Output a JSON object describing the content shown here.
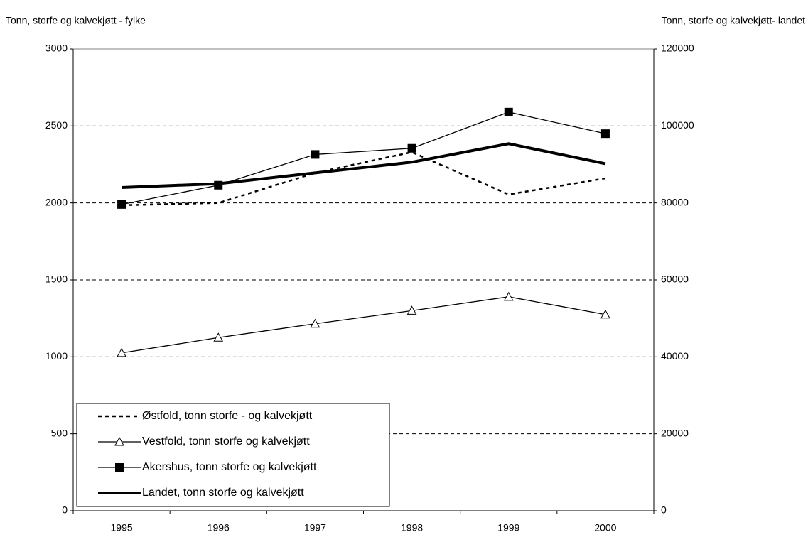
{
  "chart_data": {
    "type": "line",
    "y_label": "Tonn, storfe og kalvekjøtt - fylke",
    "y2_label": "Tonn, storfe og kalvekjøtt- landet",
    "categories": [
      "1995",
      "1996",
      "1997",
      "1998",
      "1999",
      "2000"
    ],
    "series": [
      {
        "name": "Østfold, tonn storfe - og kalvekjøtt",
        "color": "#000000",
        "dash": "dotted",
        "marker": "none",
        "values": [
          1985,
          2000,
          2195,
          2330,
          2055,
          2160
        ]
      },
      {
        "name": "Vestfold, tonn storfe og kalvekjøtt",
        "color": "#000000",
        "dash": "solid",
        "marker": "triangle",
        "values": [
          1025,
          1125,
          1215,
          1300,
          1390,
          1275
        ]
      },
      {
        "name": "Akershus, tonn storfe og kalvekjøtt",
        "color": "#000000",
        "dash": "solid",
        "marker": "square",
        "values": [
          1990,
          2115,
          2315,
          2355,
          2590,
          2450
        ]
      },
      {
        "name": "Landet, tonn storfe og kalvekjøtt",
        "color": "#000000",
        "dash": "thick",
        "marker": "none",
        "axis": "y2",
        "values": [
          84000,
          85000,
          87800,
          90600,
          95400,
          90200
        ]
      }
    ],
    "ylim": [
      0,
      3000
    ],
    "yticks": [
      0,
      500,
      1000,
      1500,
      2000,
      2500,
      3000
    ],
    "y2lim": [
      0,
      120000
    ],
    "y2ticks": [
      0,
      20000,
      40000,
      60000,
      80000,
      100000,
      120000
    ],
    "grid": true,
    "legend": "lower left"
  }
}
